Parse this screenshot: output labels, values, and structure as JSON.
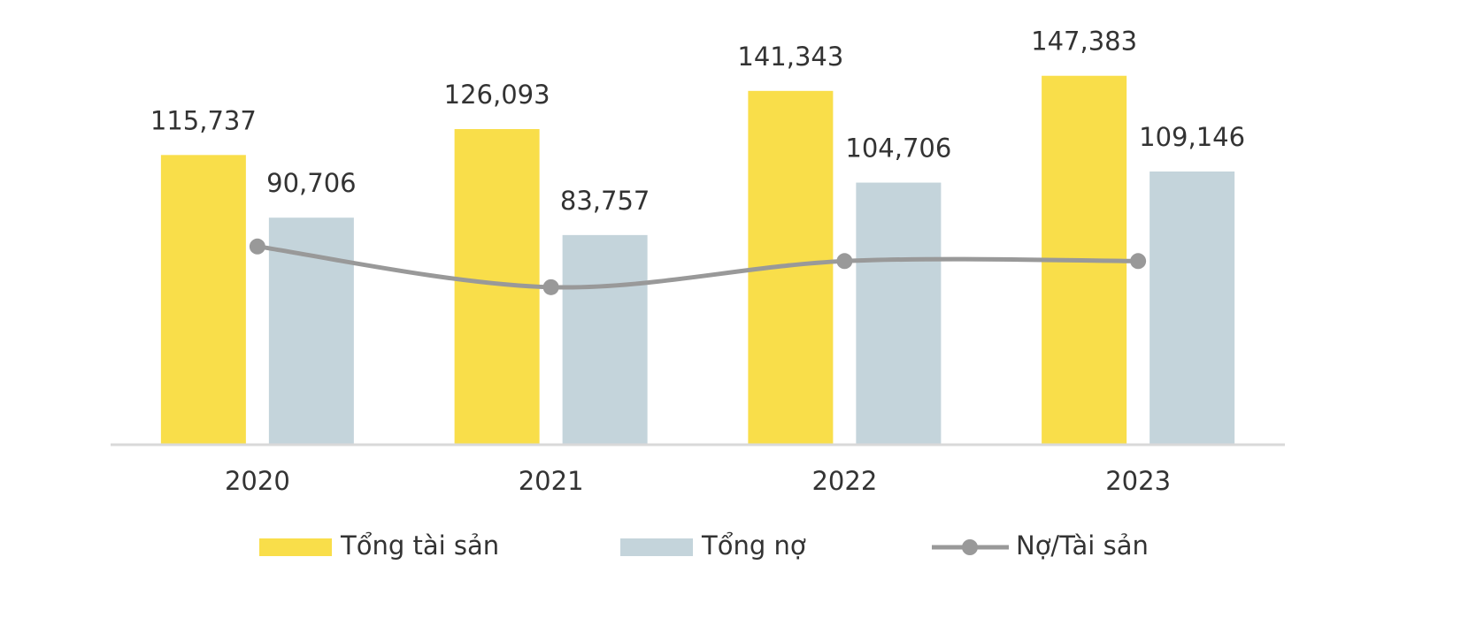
{
  "chart_data": {
    "type": "bar",
    "categories": [
      "2020",
      "2021",
      "2022",
      "2023"
    ],
    "ylim": [
      0,
      160000
    ],
    "y2lim": [
      20,
      138
    ],
    "series": [
      {
        "name": "Tổng tài sản",
        "color": "#f9de4a",
        "values": [
          115737,
          126093,
          141343,
          147383
        ],
        "value_labels": [
          "115,737",
          "126,093",
          "141,343",
          "147,383"
        ]
      },
      {
        "name": "Tổng nợ",
        "color": "#c4d4db",
        "values": [
          90706,
          83757,
          104706,
          109146
        ],
        "value_labels": [
          "90,706",
          "83,757",
          "104,706",
          "109,146"
        ]
      },
      {
        "name": "Nợ/Tài sản",
        "type": "line",
        "axis": "y2",
        "color": "#999999",
        "values": [
          78.4,
          66.4,
          74.1,
          74.1
        ]
      }
    ]
  }
}
